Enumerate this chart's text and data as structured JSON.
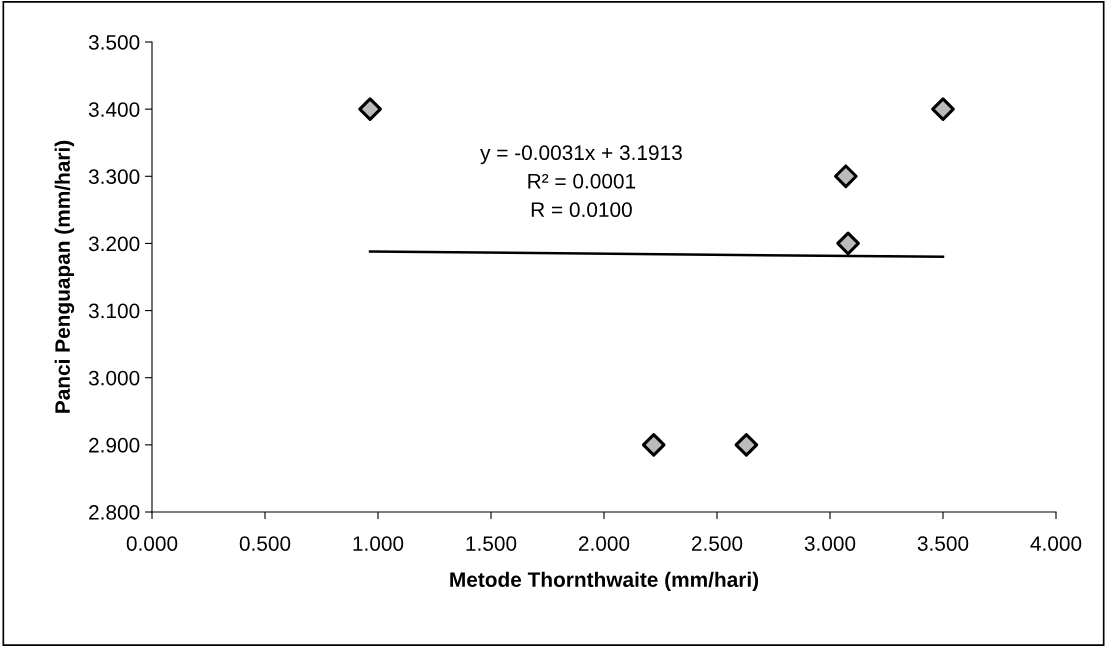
{
  "chart_data": {
    "type": "scatter",
    "xlabel": "Metode Thornthwaite (mm/hari)",
    "ylabel": "Panci Penguapan (mm/hari)",
    "x": [
      0.965,
      2.22,
      2.63,
      3.07,
      3.08,
      3.5
    ],
    "series": [
      {
        "color": "#000000",
        "marker": "diamond",
        "values": [
          3.4,
          2.9,
          2.9,
          3.3,
          3.2,
          3.4
        ]
      },
      {
        "type": "line",
        "color": "#000000",
        "marker": "none",
        "line_style": "solid",
        "x": [
          0.965,
          3.5
        ],
        "values": [
          3.188,
          3.18
        ]
      }
    ],
    "annotations": [
      "y = -0.0031x + 3.1913\nR² = 0.0001\nR = 0.0100"
    ],
    "xlim": [
      0,
      4
    ],
    "ylim": [
      2.8,
      3.5
    ],
    "xticks": [
      {
        "value": 0,
        "label": "0.000"
      },
      {
        "value": 0.5,
        "label": "0.500"
      },
      {
        "value": 1,
        "label": "1.000"
      },
      {
        "value": 1.5,
        "label": "1.500"
      },
      {
        "value": 2,
        "label": "2.000"
      },
      {
        "value": 2.5,
        "label": "2.500"
      },
      {
        "value": 3,
        "label": "3.000"
      },
      {
        "value": 3.5,
        "label": "3.500"
      },
      {
        "value": 4,
        "label": "4.000"
      }
    ],
    "yticks": [
      {
        "value": 2.8,
        "label": "2.800"
      },
      {
        "value": 2.9,
        "label": "2.900"
      },
      {
        "value": 3.0,
        "label": "3.000"
      },
      {
        "value": 3.1,
        "label": "3.100"
      },
      {
        "value": 3.2,
        "label": "3.200"
      },
      {
        "value": 3.3,
        "label": "3.300"
      },
      {
        "value": 3.4,
        "label": "3.400"
      },
      {
        "value": 3.5,
        "label": "3.500"
      }
    ],
    "grid": false,
    "legend": false
  }
}
